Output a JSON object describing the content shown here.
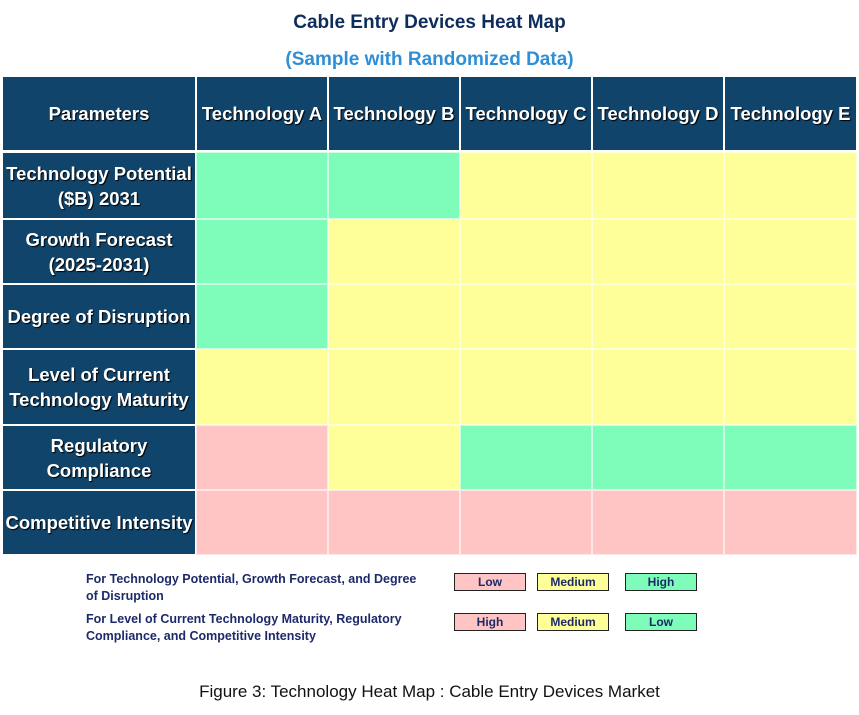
{
  "title": "Cable Entry Devices Heat Map",
  "subtitle": "(Sample with Randomized Data)",
  "colors": {
    "header": "#11446a",
    "high": "#7dfdb9",
    "medium": "#ffff99",
    "low": "#ffc4c4"
  },
  "chart_data": {
    "type": "heatmap",
    "corner_label": "Parameters",
    "columns": [
      "Technology A",
      "Technology B",
      "Technology C",
      "Technology D",
      "Technology E"
    ],
    "rows": [
      {
        "label": "Technology Potential ($B) 2031",
        "levels": [
          "green",
          "green",
          "yellow",
          "yellow",
          "yellow"
        ]
      },
      {
        "label": "Growth Forecast (2025-2031)",
        "levels": [
          "green",
          "yellow",
          "yellow",
          "yellow",
          "yellow"
        ]
      },
      {
        "label": "Degree of Disruption",
        "levels": [
          "green",
          "yellow",
          "yellow",
          "yellow",
          "yellow"
        ]
      },
      {
        "label": "Level of Current Technology Maturity",
        "levels": [
          "yellow",
          "yellow",
          "yellow",
          "yellow",
          "yellow"
        ]
      },
      {
        "label": "Regulatory Compliance",
        "levels": [
          "pink",
          "yellow",
          "green",
          "green",
          "green"
        ]
      },
      {
        "label": "Competitive Intensity",
        "levels": [
          "pink",
          "pink",
          "pink",
          "pink",
          "pink"
        ]
      }
    ]
  },
  "legend": [
    {
      "text": "For Technology Potential, Growth Forecast, and Degree of Disruption",
      "items": [
        {
          "label": "Low",
          "color": "pink"
        },
        {
          "label": "Medium",
          "color": "yellow"
        },
        {
          "label": "High",
          "color": "green"
        }
      ]
    },
    {
      "text": "For Level of Current Technology Maturity, Regulatory Compliance, and Competitive Intensity",
      "items": [
        {
          "label": "High",
          "color": "pink"
        },
        {
          "label": "Medium",
          "color": "yellow"
        },
        {
          "label": "Low",
          "color": "green"
        }
      ]
    }
  ],
  "caption": "Figure 3: Technology Heat Map :  Cable Entry Devices Market"
}
